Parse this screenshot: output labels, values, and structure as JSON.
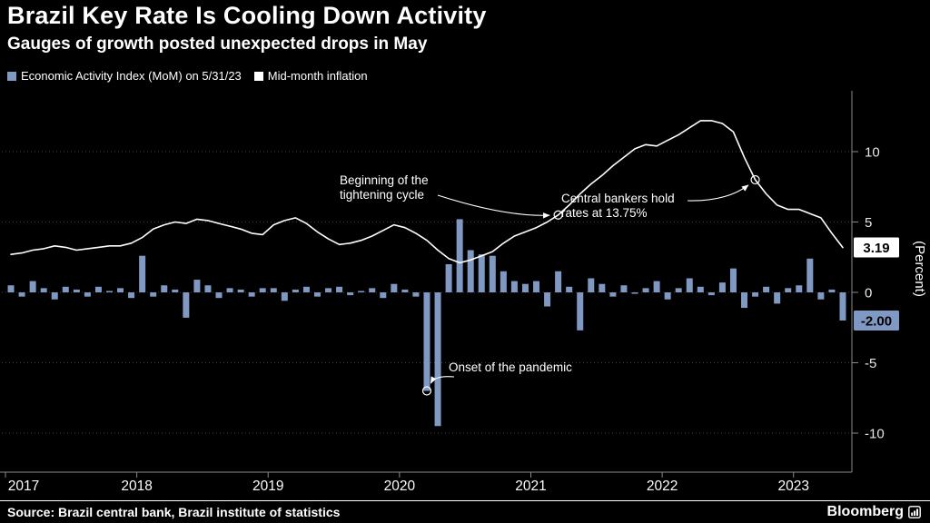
{
  "header": {
    "title": "Brazil Key Rate Is Cooling Down Activity",
    "subtitle": "Gauges of growth posted unexpected drops in May"
  },
  "footer": {
    "source": "Source: Brazil central bank, Brazil institute of statistics",
    "logo": "Bloomberg"
  },
  "chart_data": {
    "type": "bar+line",
    "title": "Brazil Key Rate Is Cooling Down Activity",
    "subtitle": "Gauges of growth posted unexpected drops in May",
    "ylabel": "(Percent)",
    "y_ticks": [
      10,
      5,
      0,
      -5,
      -10
    ],
    "ylim": [
      -12.8,
      14.2
    ],
    "grid": "dotted-horizontal",
    "legend_position": "top-left",
    "x_tick_years": [
      "2017",
      "2018",
      "2019",
      "2020",
      "2021",
      "2022",
      "2023"
    ],
    "x": [
      "2017-01",
      "2017-02",
      "2017-03",
      "2017-04",
      "2017-05",
      "2017-06",
      "2017-07",
      "2017-08",
      "2017-09",
      "2017-10",
      "2017-11",
      "2017-12",
      "2018-01",
      "2018-02",
      "2018-03",
      "2018-04",
      "2018-05",
      "2018-06",
      "2018-07",
      "2018-08",
      "2018-09",
      "2018-10",
      "2018-11",
      "2018-12",
      "2019-01",
      "2019-02",
      "2019-03",
      "2019-04",
      "2019-05",
      "2019-06",
      "2019-07",
      "2019-08",
      "2019-09",
      "2019-10",
      "2019-11",
      "2019-12",
      "2020-01",
      "2020-02",
      "2020-03",
      "2020-04",
      "2020-05",
      "2020-06",
      "2020-07",
      "2020-08",
      "2020-09",
      "2020-10",
      "2020-11",
      "2020-12",
      "2021-01",
      "2021-02",
      "2021-03",
      "2021-04",
      "2021-05",
      "2021-06",
      "2021-07",
      "2021-08",
      "2021-09",
      "2021-10",
      "2021-11",
      "2021-12",
      "2022-01",
      "2022-02",
      "2022-03",
      "2022-04",
      "2022-05",
      "2022-06",
      "2022-07",
      "2022-08",
      "2022-09",
      "2022-10",
      "2022-11",
      "2022-12",
      "2023-01",
      "2023-02",
      "2023-03",
      "2023-04",
      "2023-05"
    ],
    "series": [
      {
        "name": "Economic Activity Index (MoM) on 5/31/23",
        "type": "bar",
        "color": "#8099c2",
        "values": [
          0.5,
          -0.3,
          0.8,
          0.3,
          -0.5,
          0.4,
          0.2,
          -0.3,
          0.4,
          0.1,
          0.3,
          -0.4,
          2.6,
          -0.3,
          0.5,
          0.2,
          -1.8,
          0.9,
          0.5,
          -0.4,
          0.3,
          0.2,
          -0.3,
          0.3,
          0.3,
          -0.6,
          0.2,
          0.4,
          -0.3,
          0.3,
          0.4,
          -0.2,
          0.1,
          0.3,
          -0.4,
          0.6,
          0.2,
          -0.3,
          -7.0,
          -9.5,
          2.0,
          5.2,
          3.0,
          2.7,
          2.6,
          1.5,
          0.8,
          0.6,
          0.8,
          -1.0,
          1.5,
          0.4,
          -2.7,
          1.0,
          0.6,
          -0.3,
          0.5,
          -0.1,
          0.3,
          0.8,
          -0.5,
          0.3,
          1.0,
          0.4,
          -0.2,
          0.7,
          1.7,
          -1.1,
          -0.3,
          0.4,
          -0.8,
          0.3,
          0.5,
          2.4,
          -0.5,
          0.2,
          -2.0
        ]
      },
      {
        "name": "Mid-month inflation",
        "type": "line",
        "color": "#ffffff",
        "values": [
          2.7,
          2.8,
          3.0,
          3.1,
          3.3,
          3.2,
          3.0,
          3.1,
          3.2,
          3.3,
          3.3,
          3.5,
          3.9,
          4.5,
          4.8,
          5.0,
          4.9,
          5.2,
          5.1,
          4.9,
          4.7,
          4.5,
          4.2,
          4.1,
          4.8,
          5.1,
          5.3,
          4.9,
          4.3,
          3.8,
          3.4,
          3.5,
          3.7,
          4.0,
          4.4,
          4.8,
          4.6,
          4.2,
          3.7,
          3.0,
          2.4,
          2.1,
          2.3,
          2.6,
          2.9,
          3.5,
          4.0,
          4.3,
          4.6,
          5.0,
          5.5,
          6.2,
          7.0,
          7.7,
          8.3,
          9.0,
          9.6,
          10.2,
          10.5,
          10.4,
          10.8,
          11.2,
          11.7,
          12.2,
          12.2,
          12.0,
          11.4,
          9.6,
          8.0,
          7.0,
          6.2,
          5.9,
          5.9,
          5.6,
          5.3,
          4.2,
          3.19
        ]
      }
    ],
    "end_value_labels": [
      {
        "series": "Mid-month inflation",
        "text": "3.19",
        "bg": "#ffffff",
        "fg": "#000000"
      },
      {
        "series": "Economic Activity Index (MoM) on 5/31/23",
        "text": "-2.00",
        "bg": "#8099c2",
        "fg": "#000000"
      }
    ],
    "annotations": [
      {
        "id": "tightening",
        "lines": [
          "Beginning of the",
          "tightening cycle"
        ],
        "series": 1,
        "point": "2021-03"
      },
      {
        "id": "hold",
        "lines": [
          "Central bankers hold",
          "rates at 13.75%"
        ],
        "series": 1,
        "point": "2022-09"
      },
      {
        "id": "pandemic",
        "lines": [
          "Onset of the pandemic"
        ],
        "series": 0,
        "point": "2020-03"
      }
    ]
  }
}
